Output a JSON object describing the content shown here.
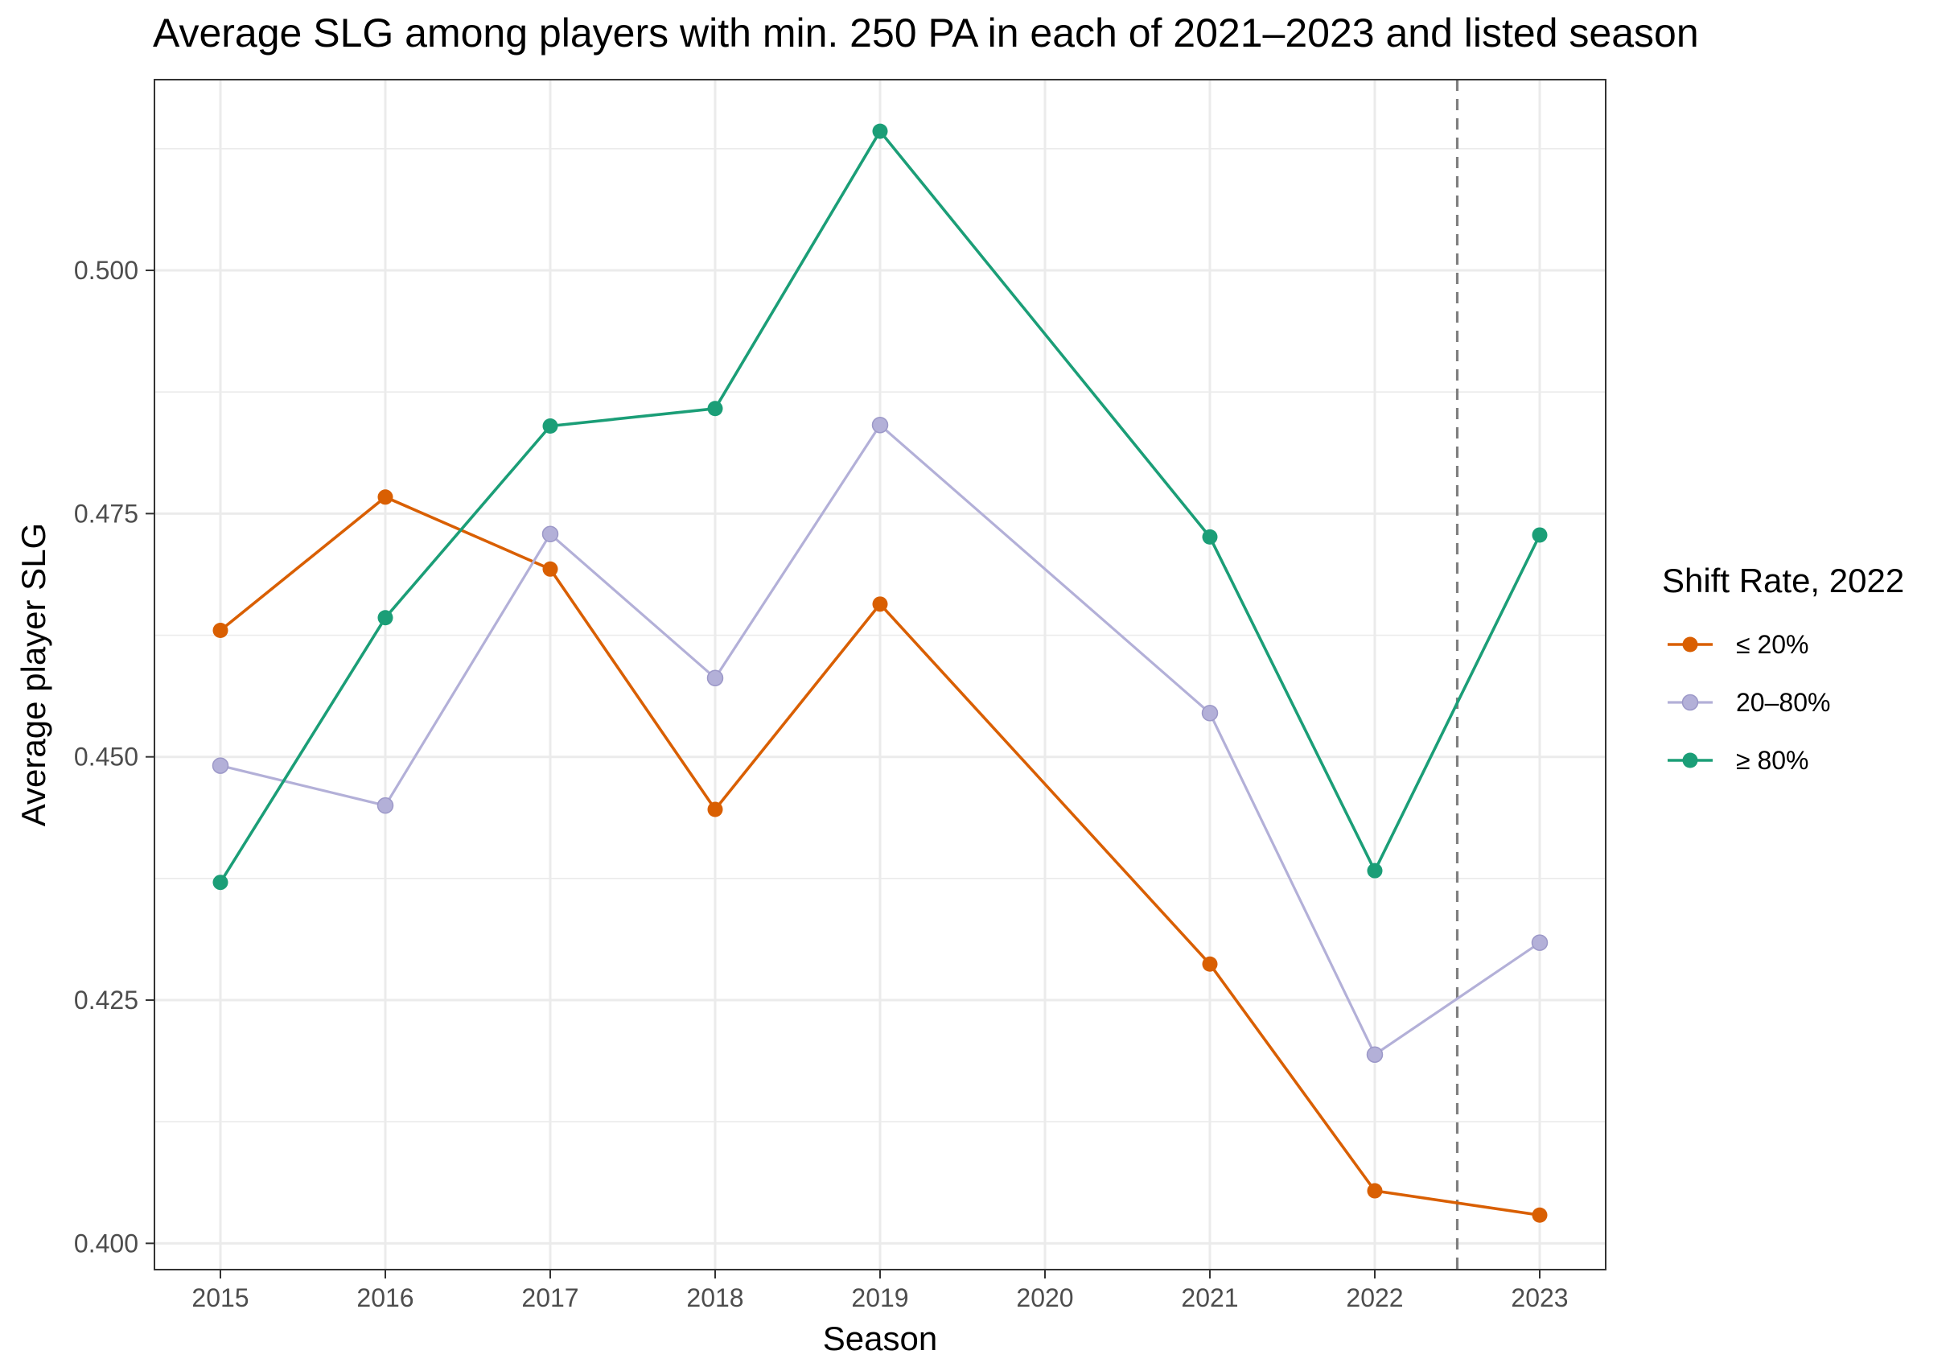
{
  "chart_data": {
    "type": "line",
    "title": "Average SLG among players with min. 250 PA in each of 2021–2023 and listed season",
    "xlabel": "Season",
    "ylabel": "Average player SLG",
    "x": [
      2015,
      2016,
      2017,
      2018,
      2019,
      2020,
      2021,
      2022,
      2023
    ],
    "x_tick_labels": [
      "2015",
      "2016",
      "2017",
      "2018",
      "2019",
      "2020",
      "2021",
      "2022",
      "2023"
    ],
    "xlim": [
      2014.6,
      2023.4
    ],
    "ylim": [
      0.3973,
      0.5196
    ],
    "y_ticks": [
      0.4,
      0.425,
      0.45,
      0.475,
      0.5
    ],
    "y_tick_labels": [
      "0.400",
      "0.425",
      "0.450",
      "0.475",
      "0.500"
    ],
    "grid": true,
    "reference_line": {
      "x": 2022.5,
      "style": "dashed",
      "color": "#7f7f7f"
    },
    "legend": {
      "title": "Shift Rate, 2022",
      "position": "right"
    },
    "series": [
      {
        "name": "≤ 20%",
        "color": "#d95f02",
        "points": [
          {
            "x": 2015,
            "y": 0.463
          },
          {
            "x": 2016,
            "y": 0.4767
          },
          {
            "x": 2017,
            "y": 0.4693
          },
          {
            "x": 2018,
            "y": 0.4446
          },
          {
            "x": 2019,
            "y": 0.4657
          },
          {
            "x": 2021,
            "y": 0.4287
          },
          {
            "x": 2022,
            "y": 0.4054
          },
          {
            "x": 2023,
            "y": 0.4029
          }
        ]
      },
      {
        "name": "20–80%",
        "color": "#b3b0d8",
        "points": [
          {
            "x": 2015,
            "y": 0.4491
          },
          {
            "x": 2016,
            "y": 0.445
          },
          {
            "x": 2017,
            "y": 0.4729
          },
          {
            "x": 2018,
            "y": 0.4581
          },
          {
            "x": 2019,
            "y": 0.4841
          },
          {
            "x": 2021,
            "y": 0.4545
          },
          {
            "x": 2022,
            "y": 0.4194
          },
          {
            "x": 2023,
            "y": 0.4309
          }
        ]
      },
      {
        "name": "≥ 80%",
        "color": "#1b9e77",
        "points": [
          {
            "x": 2015,
            "y": 0.4371
          },
          {
            "x": 2016,
            "y": 0.4643
          },
          {
            "x": 2017,
            "y": 0.484
          },
          {
            "x": 2018,
            "y": 0.4858
          },
          {
            "x": 2019,
            "y": 0.5143
          },
          {
            "x": 2021,
            "y": 0.4726
          },
          {
            "x": 2022,
            "y": 0.4383
          },
          {
            "x": 2023,
            "y": 0.4728
          }
        ]
      }
    ]
  }
}
